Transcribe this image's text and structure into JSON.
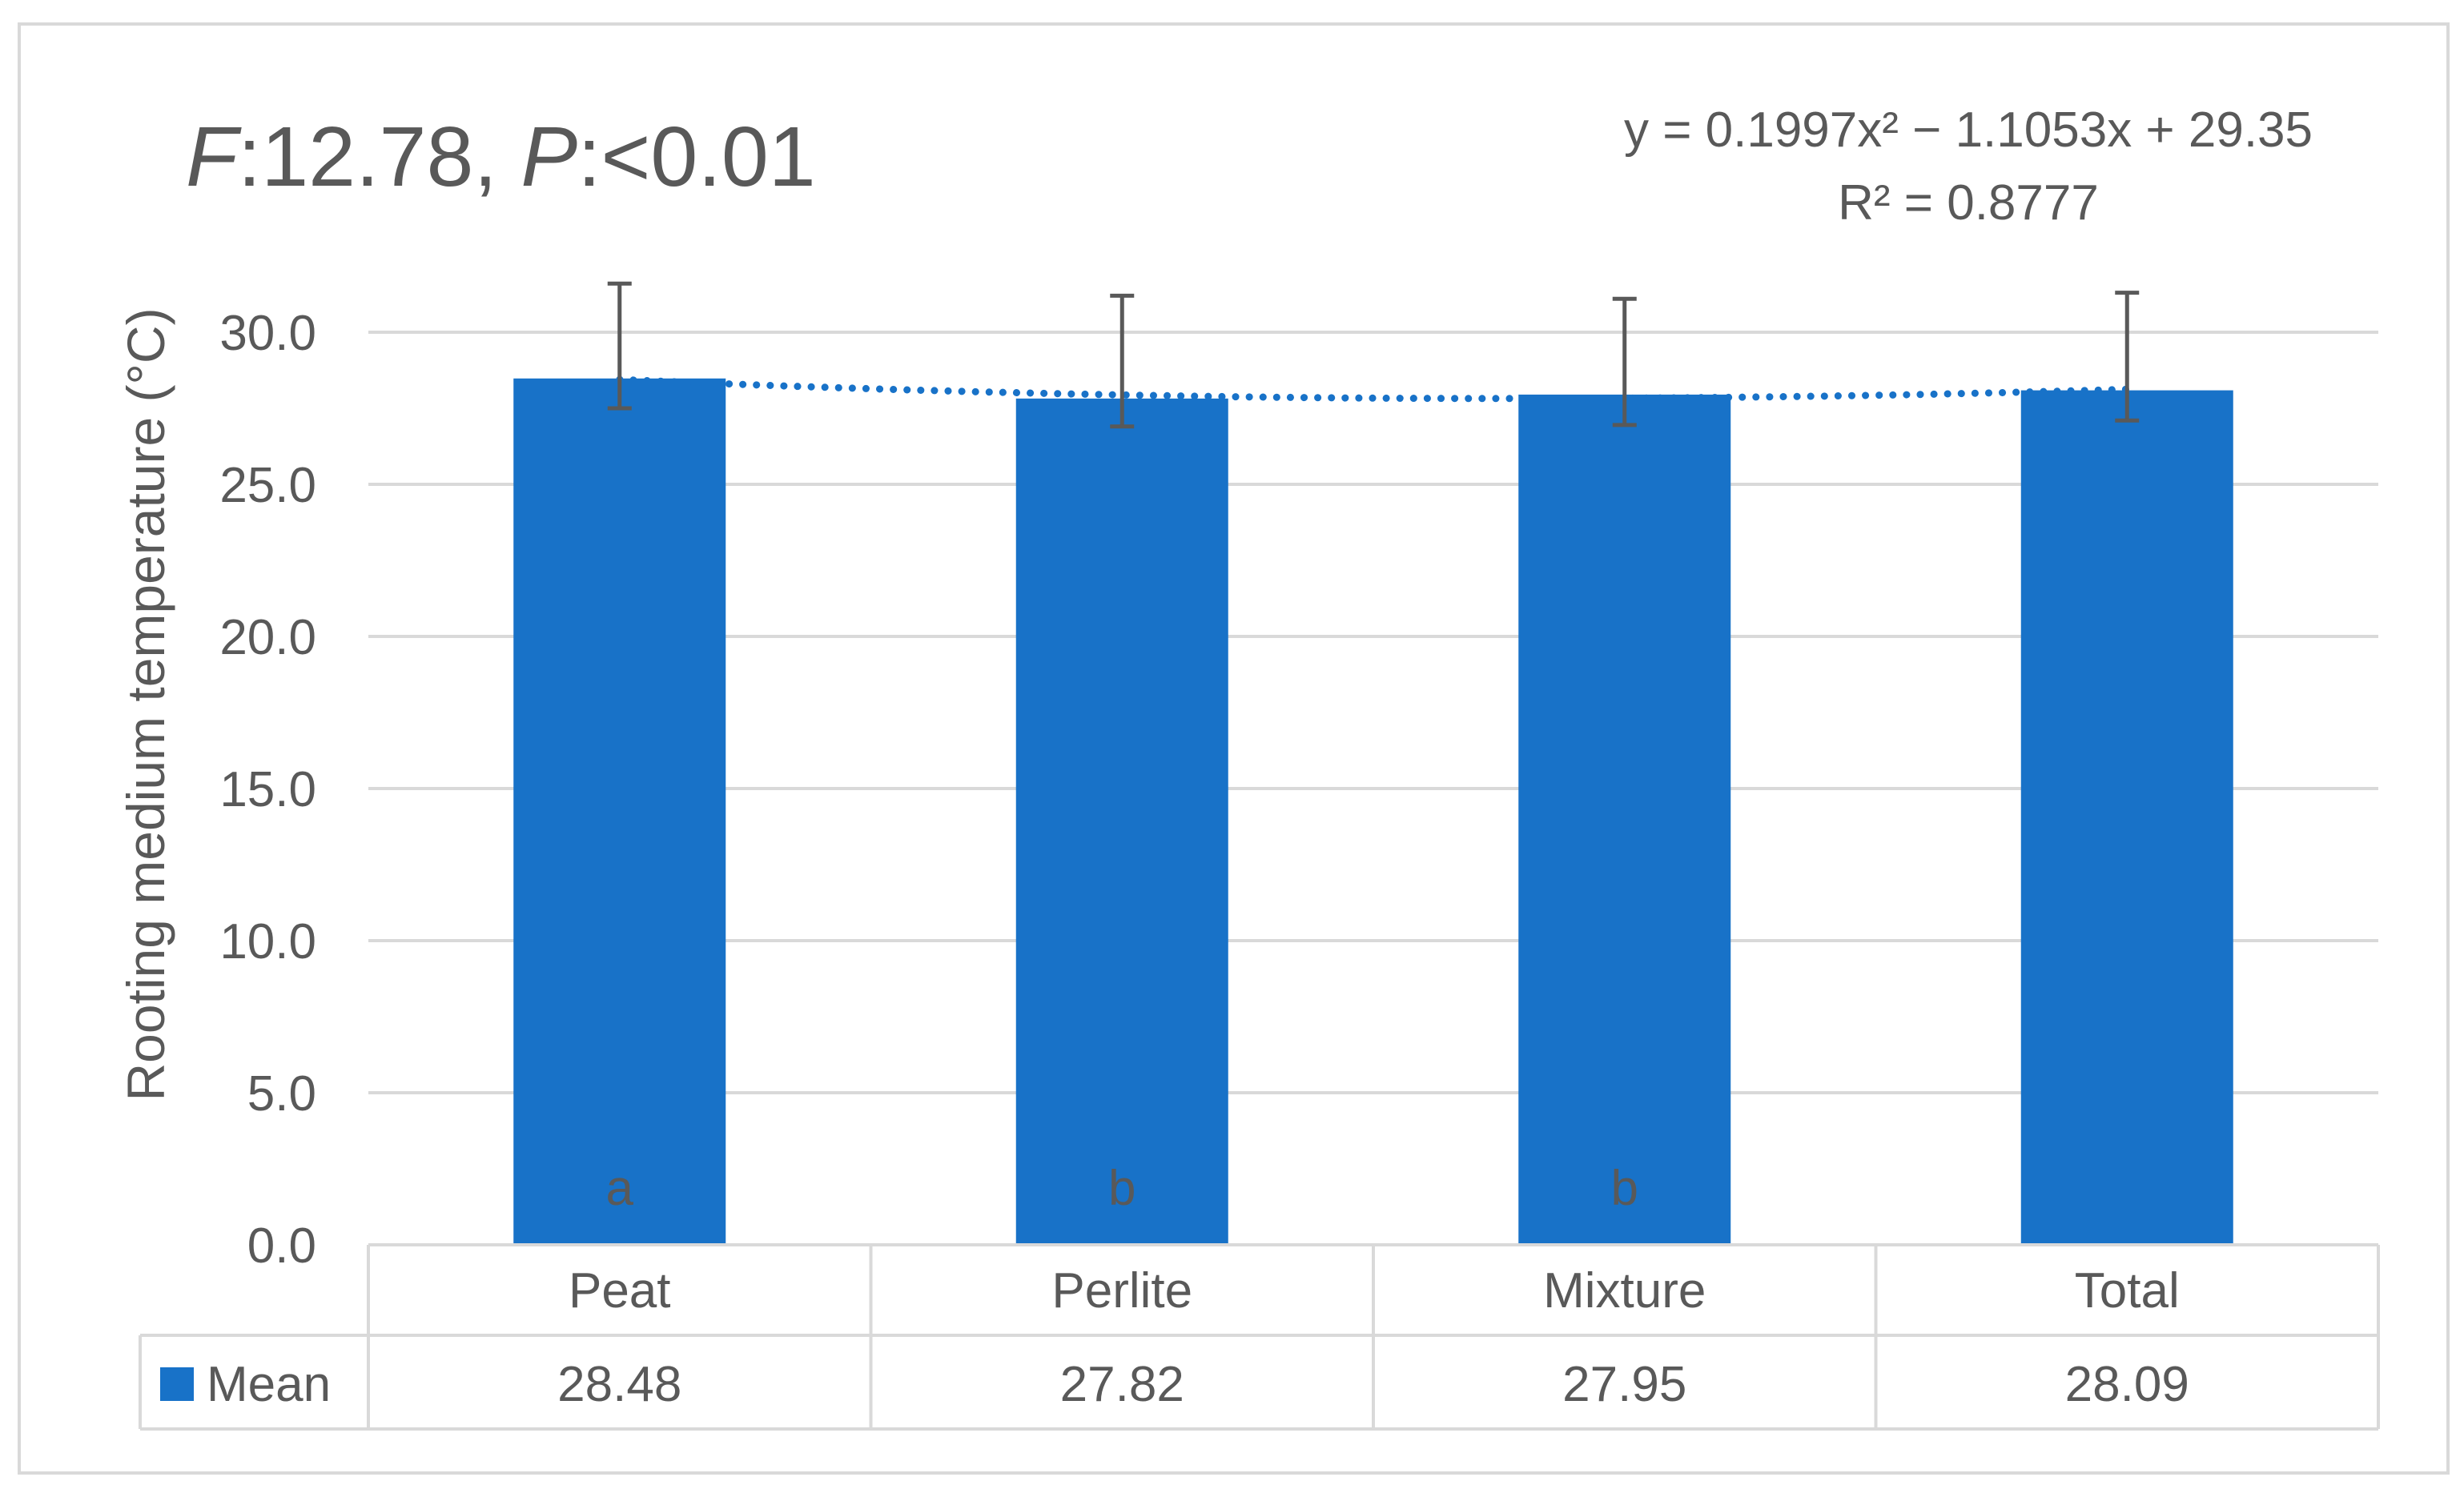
{
  "stats_annotation": {
    "f_label": "F",
    "f_value": ":12.78, ",
    "p_label": "P",
    "p_value": ":<0.01"
  },
  "trendline_equation": "y = 0.1997x² − 1.1053x + 29.35",
  "trendline_r2": "R² = 0.8777",
  "colors": {
    "bar": "#1872C8",
    "trendline": "#1872C8",
    "grid": "#D9D9D9",
    "text": "#595959",
    "error_bar": "#595959",
    "border": "#D9D9D9"
  },
  "chart_data": {
    "type": "bar",
    "title": "",
    "ylabel": "Rooting medium temperature (°C)",
    "xlabel": "",
    "ylim": [
      0,
      30
    ],
    "yticks": [
      "0.0",
      "5.0",
      "10.0",
      "15.0",
      "20.0",
      "25.0",
      "30.0"
    ],
    "categories": [
      "Peat",
      "Perlite",
      "Mixture",
      "Total"
    ],
    "series": [
      {
        "name": "Mean",
        "values": [
          28.48,
          27.82,
          27.95,
          28.09
        ],
        "table_values": [
          "28.48",
          "27.82",
          "27.95",
          "28.09"
        ],
        "error_upper": [
          31.6,
          31.2,
          31.1,
          31.3
        ],
        "error_lower": [
          27.5,
          26.9,
          26.95,
          27.1
        ]
      }
    ],
    "significance_letters": [
      "a",
      "b",
      "b",
      ""
    ],
    "trendline": {
      "type": "polynomial",
      "order": 2
    },
    "grid": true,
    "legend": "data-table"
  }
}
